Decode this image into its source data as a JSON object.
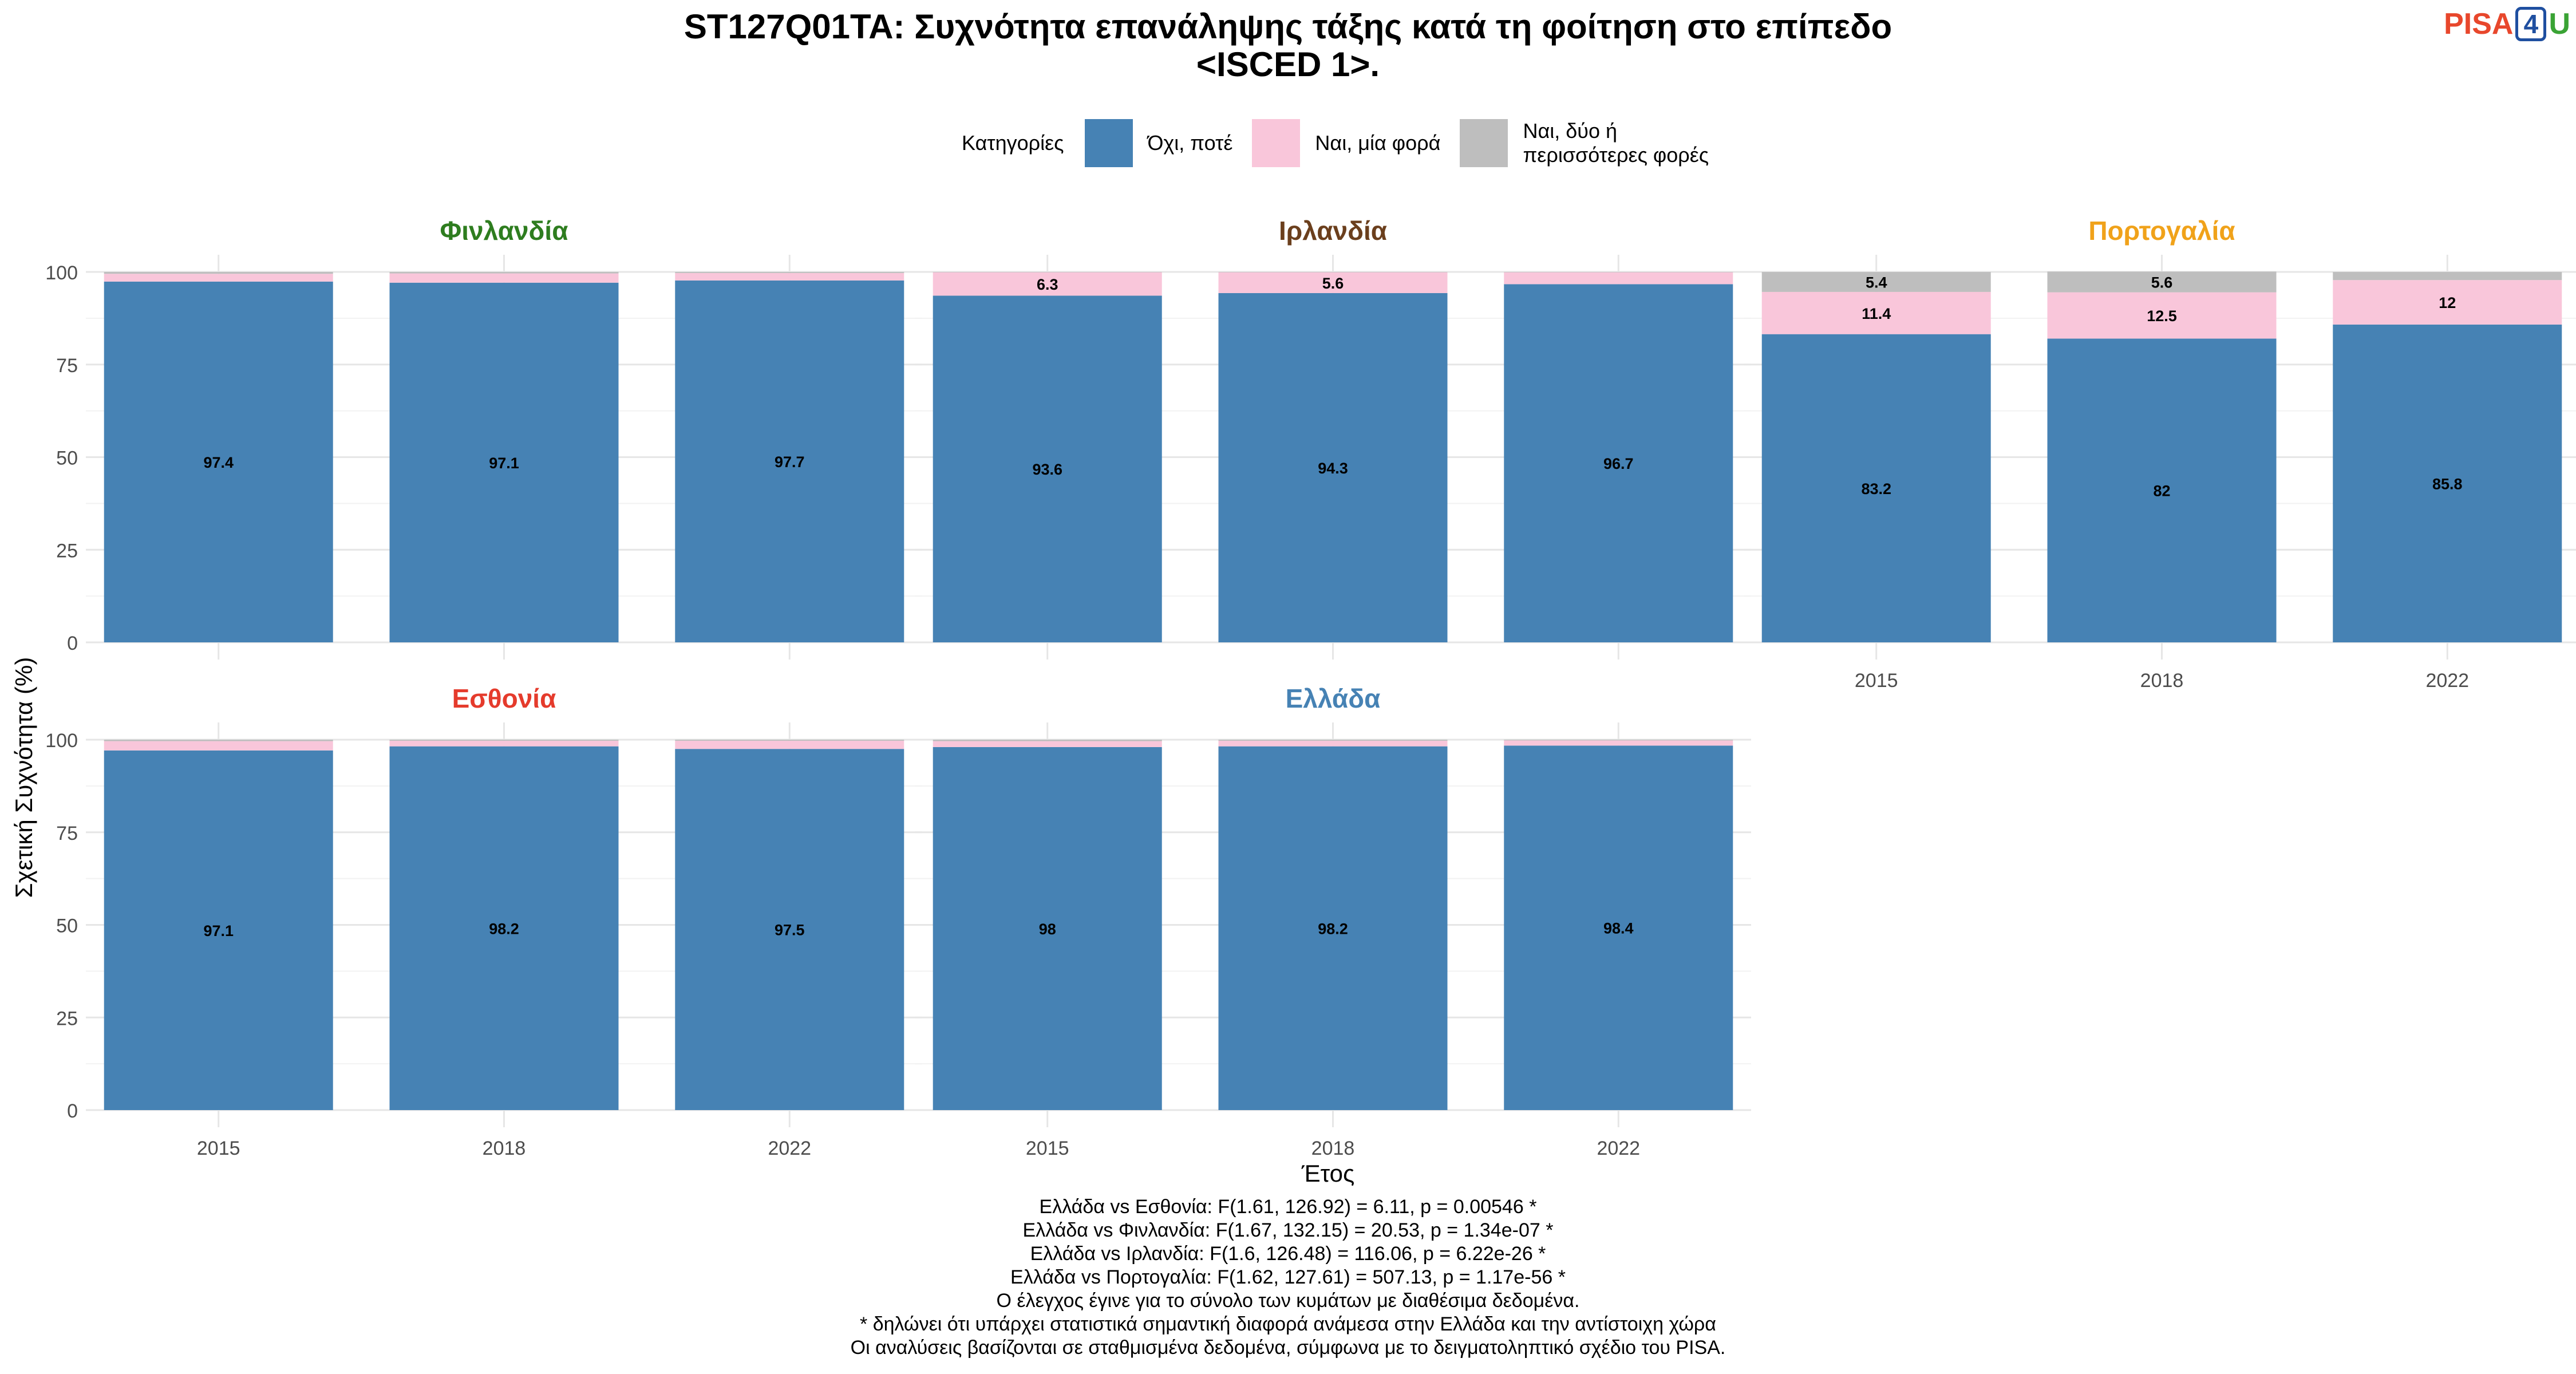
{
  "title_lines": [
    "ST127Q01TA: Συχνότητα επανάληψης τάξης κατά τη φοίτηση στο επίπεδο",
    "<ISCED 1>."
  ],
  "logo": {
    "text_a": "PISA",
    "text_b": "4",
    "text_c": "U"
  },
  "legend": {
    "title": "Κατηγορίες",
    "items": [
      {
        "label": "Όχι, ποτέ",
        "color": "#4682B4"
      },
      {
        "label": "Ναι, μία φορά",
        "color": "#F9C6DA"
      },
      {
        "label": "Ναι, δύο ή περισσότερες φορές",
        "color": "#BEBEBE"
      }
    ]
  },
  "axis": {
    "ylabel": "Σχετική Συχνότητα (%)",
    "xlabel": "Έτος"
  },
  "chart_data": {
    "type": "bar",
    "stacked": true,
    "ylim": [
      0,
      100
    ],
    "yticks": [
      0,
      25,
      50,
      75,
      100
    ],
    "categories": [
      "2015",
      "2018",
      "2022"
    ],
    "facets": [
      {
        "name": "Φινλανδία",
        "color": "#2E7D1F",
        "series": [
          [
            97.4,
            97.1,
            97.7
          ],
          [
            2.1,
            2.5,
            2.0
          ],
          [
            0.5,
            0.4,
            0.3
          ]
        ],
        "labels": [
          [
            "97.4",
            "97.1",
            "97.7"
          ],
          [
            "",
            "",
            ""
          ],
          [
            "",
            "",
            ""
          ]
        ]
      },
      {
        "name": "Ιρλανδία",
        "color": "#6B3F1D",
        "series": [
          [
            93.6,
            94.3,
            96.7
          ],
          [
            6.3,
            5.6,
            3.2
          ],
          [
            0.1,
            0.1,
            0.1
          ]
        ],
        "labels": [
          [
            "93.6",
            "94.3",
            "96.7"
          ],
          [
            "6.3",
            "5.6",
            ""
          ],
          [
            "",
            "",
            ""
          ]
        ]
      },
      {
        "name": "Πορτογαλία",
        "color": "#F0A21A",
        "series": [
          [
            83.2,
            82.0,
            85.8
          ],
          [
            11.4,
            12.5,
            12.0
          ],
          [
            5.4,
            5.6,
            2.2
          ]
        ],
        "labels": [
          [
            "83.2",
            "82",
            "85.8"
          ],
          [
            "11.4",
            "12.5",
            "12"
          ],
          [
            "5.4",
            "5.6",
            ""
          ]
        ]
      },
      {
        "name": "Εσθονία",
        "color": "#E53B2C",
        "series": [
          [
            97.1,
            98.2,
            97.5
          ],
          [
            2.5,
            1.5,
            2.2
          ],
          [
            0.4,
            0.3,
            0.3
          ]
        ],
        "labels": [
          [
            "97.1",
            "98.2",
            "97.5"
          ],
          [
            "",
            "",
            ""
          ],
          [
            "",
            "",
            ""
          ]
        ]
      },
      {
        "name": "Ελλάδα",
        "color": "#4682B4",
        "series": [
          [
            98.0,
            98.2,
            98.4
          ],
          [
            1.6,
            1.5,
            1.4
          ],
          [
            0.4,
            0.3,
            0.2
          ]
        ],
        "labels": [
          [
            "98",
            "98.2",
            "98.4"
          ],
          [
            "",
            "",
            ""
          ],
          [
            "",
            "",
            ""
          ]
        ]
      }
    ]
  },
  "notes": [
    "Ελλάδα vs Εσθονία: F(1.61, 126.92) = 6.11, p = 0.00546 *",
    "Ελλάδα vs Φινλανδία: F(1.67, 132.15) = 20.53, p = 1.34e-07 *",
    "Ελλάδα vs Ιρλανδία: F(1.6, 126.48) = 116.06, p = 6.22e-26 *",
    "Ελλάδα vs Πορτογαλία: F(1.62, 127.61) = 507.13, p = 1.17e-56 *",
    "Ο έλεγχος έγινε για το σύνολο των κυμάτων με διαθέσιμα δεδομένα.",
    "* δηλώνει ότι υπάρχει στατιστικά σημαντική διαφορά ανάμεσα στην Ελλάδα και την αντίστοιχη χώρα",
    "Οι αναλύσεις βασίζονται σε σταθμισμένα δεδομένα, σύμφωνα με το δειγματοληπτικό σχέδιο του PISA."
  ]
}
